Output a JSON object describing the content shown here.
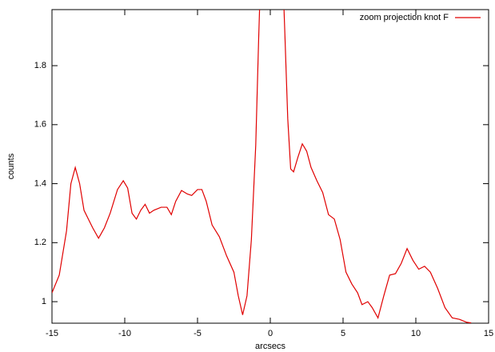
{
  "chart_data": {
    "type": "line",
    "x_label": "arcsecs",
    "y_label": "counts",
    "x": [
      -15,
      -14.5,
      -14,
      -13.7,
      -13.4,
      -13.1,
      -12.8,
      -12.5,
      -12.2,
      -11.8,
      -11.4,
      -11,
      -10.5,
      -10.1,
      -9.8,
      -9.5,
      -9.2,
      -8.9,
      -8.6,
      -8.3,
      -8,
      -7.5,
      -7.1,
      -6.8,
      -6.5,
      -6.1,
      -5.7,
      -5.4,
      -5,
      -4.7,
      -4.4,
      -4,
      -3.5,
      -3,
      -2.5,
      -2.2,
      -1.9,
      -1.6,
      -1.3,
      -1,
      -0.8,
      -0.7,
      0.9,
      1,
      1.2,
      1.4,
      1.6,
      1.9,
      2.2,
      2.5,
      2.8,
      3.2,
      3.6,
      4,
      4.4,
      4.8,
      5.2,
      5.6,
      6,
      6.3,
      6.7,
      7,
      7.4,
      7.8,
      8.2,
      8.6,
      9,
      9.4,
      9.8,
      10.2,
      10.6,
      11,
      11.5,
      12,
      12.5,
      13,
      13.5,
      13.8
    ],
    "series": [
      {
        "name": "zoom projection  knot F",
        "color": "#e00000",
        "values": [
          1.03,
          1.09,
          1.24,
          1.4,
          1.455,
          1.4,
          1.31,
          1.28,
          1.25,
          1.215,
          1.25,
          1.3,
          1.38,
          1.41,
          1.385,
          1.3,
          1.28,
          1.31,
          1.33,
          1.3,
          1.31,
          1.32,
          1.32,
          1.295,
          1.34,
          1.377,
          1.365,
          1.36,
          1.38,
          1.38,
          1.34,
          1.26,
          1.22,
          1.155,
          1.1,
          1.02,
          0.955,
          1.02,
          1.21,
          1.53,
          1.89,
          2.05,
          2.05,
          1.91,
          1.62,
          1.45,
          1.44,
          1.49,
          1.535,
          1.51,
          1.455,
          1.41,
          1.37,
          1.295,
          1.28,
          1.21,
          1.1,
          1.06,
          1.03,
          0.99,
          1.0,
          0.98,
          0.945,
          1.02,
          1.09,
          1.095,
          1.13,
          1.18,
          1.14,
          1.11,
          1.12,
          1.1,
          1.045,
          0.98,
          0.945,
          0.94,
          0.93,
          0.928
        ]
      }
    ],
    "xlim": [
      -15,
      15
    ],
    "ylim": [
      0.927,
      1.99
    ],
    "xticks": [
      -15,
      -10,
      -5,
      0,
      5,
      10,
      15
    ],
    "yticks": [
      1,
      1.2,
      1.4,
      1.6,
      1.8
    ],
    "legend": "top-right"
  }
}
